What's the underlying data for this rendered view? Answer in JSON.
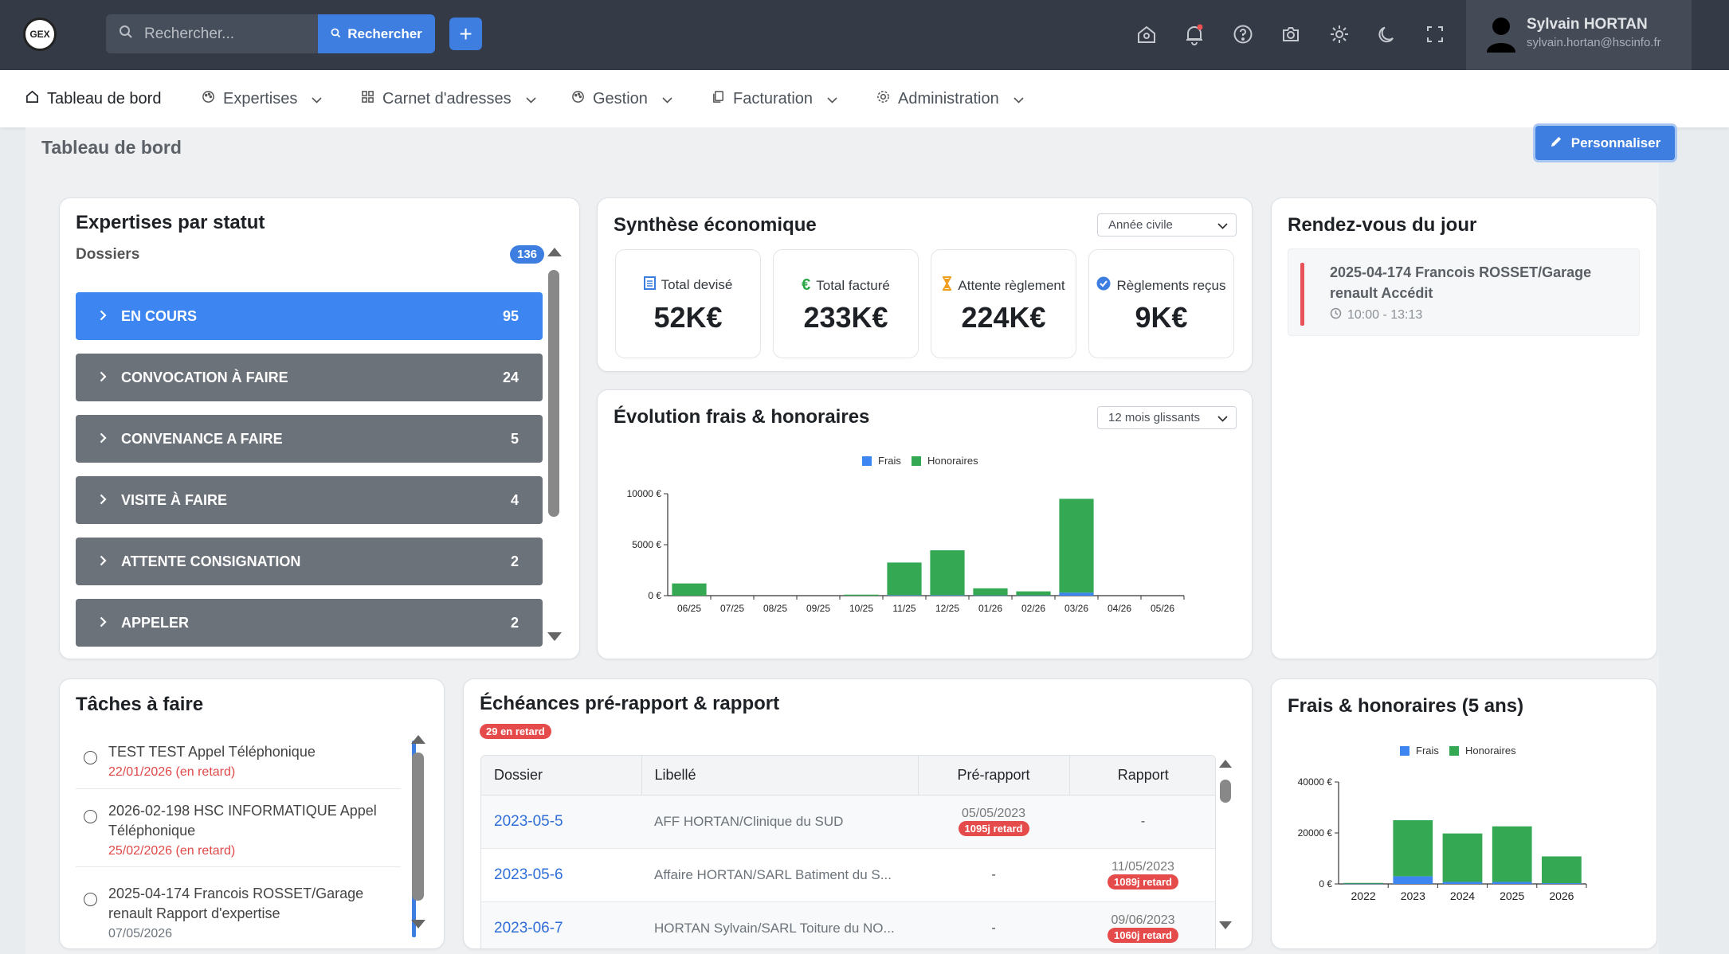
{
  "app": {
    "logo_text": "GEX"
  },
  "search": {
    "placeholder": "Rechercher...",
    "button_label": "Rechercher"
  },
  "user": {
    "name": "Sylvain HORTAN",
    "email": "sylvain.hortan@hscinfo.fr"
  },
  "nav": {
    "items": [
      {
        "label": "Tableau de bord"
      },
      {
        "label": "Expertises"
      },
      {
        "label": "Carnet d'adresses"
      },
      {
        "label": "Gestion"
      },
      {
        "label": "Facturation"
      },
      {
        "label": "Administration"
      }
    ]
  },
  "page": {
    "title": "Tableau de bord",
    "customize_label": "Personnaliser"
  },
  "expertises": {
    "title": "Expertises par statut",
    "subtitle": "Dossiers",
    "total": "136",
    "rows": [
      {
        "label": "EN COURS",
        "count": "95",
        "color": "#3d85f0"
      },
      {
        "label": "CONVOCATION À FAIRE",
        "count": "24",
        "color": "#6b7279"
      },
      {
        "label": "CONVENANCE A FAIRE",
        "count": "5",
        "color": "#6b7279"
      },
      {
        "label": "VISITE À FAIRE",
        "count": "4",
        "color": "#6b7279"
      },
      {
        "label": "ATTENTE CONSIGNATION",
        "count": "2",
        "color": "#6b7279"
      },
      {
        "label": "APPELER",
        "count": "2",
        "color": "#6b7279"
      }
    ]
  },
  "synthese": {
    "title": "Synthèse économique",
    "period": "Année civile",
    "kpis": [
      {
        "label": "Total devisé",
        "value": "52K€",
        "icon": "document-icon",
        "color": "#3d7ee0"
      },
      {
        "label": "Total facturé",
        "value": "233K€",
        "icon": "euro-icon",
        "color": "#28a745"
      },
      {
        "label": "Attente règlement",
        "value": "224K€",
        "icon": "hourglass-icon",
        "color": "#f0a020"
      },
      {
        "label": "Règlements reçus",
        "value": "9K€",
        "icon": "check-circle-icon",
        "color": "#3d7ee0"
      }
    ]
  },
  "rdv": {
    "title": "Rendez-vous du jour",
    "items": [
      {
        "title": "2025-04-174 Francois ROSSET/Garage renault Accédit",
        "time": "10:00 - 13:13"
      }
    ]
  },
  "evolution": {
    "title": "Évolution frais & honoraires",
    "period": "12 mois glissants"
  },
  "taches": {
    "title": "Tâches à faire",
    "items": [
      {
        "title": "TEST TEST Appel Téléphonique",
        "date": "22/01/2026 (en retard)"
      },
      {
        "title": "2026-02-198 HSC INFORMATIQUE Appel Téléphonique",
        "date": "25/02/2026 (en retard)"
      },
      {
        "title": "2025-04-174 Francois ROSSET/Garage renault Rapport d'expertise",
        "date": "07/05/2026"
      }
    ]
  },
  "echeances": {
    "title": "Échéances pré-rapport & rapport",
    "late_badge": "29 en retard",
    "columns": [
      "Dossier",
      "Libellé",
      "Pré-rapport",
      "Rapport"
    ],
    "rows": [
      {
        "dossier": "2023-05-5",
        "libelle": "AFF HORTAN/Clinique du SUD",
        "pre_date": "05/05/2023",
        "pre_badge": "1095j retard",
        "rap_date": "-",
        "rap_badge": ""
      },
      {
        "dossier": "2023-05-6",
        "libelle": "Affaire HORTAN/SARL Batiment du S...",
        "pre_date": "-",
        "pre_badge": "",
        "rap_date": "11/05/2023",
        "rap_badge": "1089j retard"
      },
      {
        "dossier": "2023-06-7",
        "libelle": "HORTAN Sylvain/SARL Toiture du NO...",
        "pre_date": "-",
        "pre_badge": "",
        "rap_date": "09/06/2023",
        "rap_badge": "1060j retard"
      }
    ]
  },
  "frais5": {
    "title": "Frais & honoraires (5 ans)"
  },
  "chart_data": [
    {
      "type": "bar",
      "stacked": true,
      "legend": [
        "Frais",
        "Honoraires"
      ],
      "categories": [
        "06/25",
        "07/25",
        "08/25",
        "09/25",
        "10/25",
        "11/25",
        "12/25",
        "01/26",
        "02/26",
        "03/26",
        "04/26",
        "05/26"
      ],
      "series": [
        {
          "name": "Frais",
          "color": "#3d85f0",
          "values": [
            0,
            0,
            0,
            0,
            0,
            50,
            50,
            20,
            20,
            300,
            0,
            0
          ]
        },
        {
          "name": "Honoraires",
          "color": "#34a853",
          "values": [
            1200,
            0,
            0,
            0,
            100,
            3200,
            4400,
            700,
            400,
            9200,
            0,
            0
          ]
        }
      ],
      "yticks": [
        "10000 €",
        "5000 €",
        "0 €"
      ],
      "ylim": [
        0,
        10000
      ]
    },
    {
      "type": "bar",
      "stacked": true,
      "legend": [
        "Frais",
        "Honoraires"
      ],
      "categories": [
        "2022",
        "2023",
        "2024",
        "2025",
        "2026"
      ],
      "series": [
        {
          "name": "Frais",
          "color": "#3d85f0",
          "values": [
            100,
            3000,
            800,
            800,
            300
          ]
        },
        {
          "name": "Honoraires",
          "color": "#34a853",
          "values": [
            300,
            22000,
            19000,
            21800,
            10500
          ]
        }
      ],
      "yticks": [
        "40000 €",
        "20000 €",
        "0 €"
      ],
      "ylim": [
        0,
        40000
      ]
    }
  ]
}
